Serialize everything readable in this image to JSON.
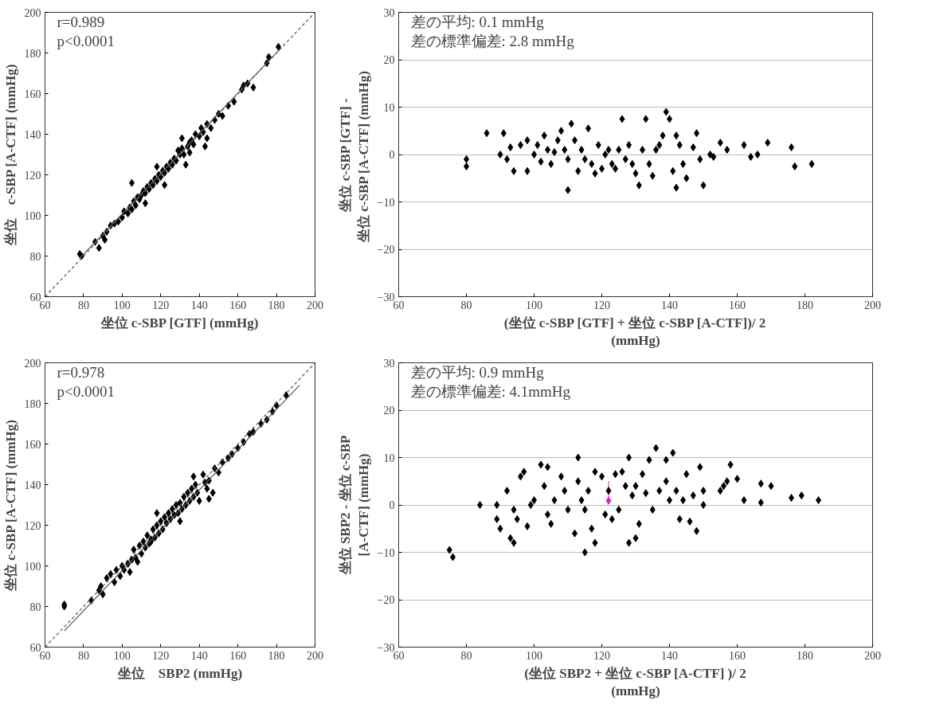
{
  "chart_data": [
    {
      "type": "scatter",
      "xlabel": "坐位 c-SBP [GTF] (mmHg)",
      "ylabel": "坐位　c-SBP [A-CTF] (mmHg)",
      "annotations": [
        "r=0.989",
        "p<0.0001"
      ],
      "xlim": [
        60,
        200
      ],
      "ylim": [
        60,
        200
      ],
      "xticks": [
        60,
        80,
        100,
        120,
        140,
        160,
        180,
        200
      ],
      "yticks": [
        60,
        80,
        100,
        120,
        140,
        160,
        180,
        200
      ],
      "grid": false,
      "marker": "diamond",
      "series": [
        {
          "color": "#000000",
          "x": [
            78,
            79,
            88,
            86,
            90,
            92,
            91,
            94,
            96,
            98,
            100,
            101,
            103,
            104,
            105,
            106,
            107,
            108,
            109,
            110,
            111,
            112,
            113,
            114,
            115,
            116,
            117,
            118,
            119,
            120,
            121,
            122,
            123,
            124,
            125,
            126,
            127,
            128,
            130,
            129,
            131,
            132,
            134,
            135,
            136,
            138,
            137,
            140,
            141,
            142,
            144,
            144,
            146,
            148,
            150,
            152,
            155,
            158,
            162,
            163,
            165,
            168,
            175,
            176,
            181,
            105,
            122,
            133,
            143,
            112,
            118,
            131,
            135
          ],
          "values": [
            81,
            80,
            84,
            87,
            90,
            92,
            88,
            95,
            96,
            97,
            99,
            102,
            101,
            104,
            103,
            107,
            105,
            109,
            108,
            110,
            112,
            111,
            114,
            113,
            116,
            115,
            118,
            117,
            120,
            119,
            122,
            121,
            124,
            123,
            126,
            125,
            128,
            127,
            130,
            132,
            133,
            130,
            134,
            136,
            137,
            140,
            135,
            139,
            143,
            141,
            138,
            145,
            143,
            147,
            150,
            149,
            154,
            156,
            162,
            164,
            165,
            163,
            175,
            178,
            183,
            116,
            115,
            125,
            134,
            106,
            124,
            138,
            131
          ]
        },
        {
          "type": "line",
          "marker": "none",
          "line_style": "dashed",
          "color": "#555555",
          "x": [
            60,
            200
          ],
          "values": [
            60,
            200
          ]
        },
        {
          "type": "line",
          "marker": "none",
          "line_style": "solid",
          "color": "#555555",
          "x": [
            78,
            182
          ],
          "values": [
            79,
            182
          ]
        }
      ]
    },
    {
      "type": "scatter",
      "xlabel": "(坐位 c-SBP [GTF] + 坐位 c-SBP [A-CTF])/ 2\n(mmHg)",
      "ylabel": "坐位 c-SBP [GTF] -\n坐位 c-SBP [A-CTF]  (mmHg)",
      "annotations": [
        "差の平均:  0.1 mmHg",
        "差の標準偏差:  2.8 mmHg"
      ],
      "xlim": [
        60,
        200
      ],
      "ylim": [
        -30,
        30
      ],
      "xticks": [
        60,
        80,
        100,
        120,
        140,
        160,
        180,
        200
      ],
      "yticks": [
        -30,
        -20,
        -10,
        0,
        10,
        20,
        30
      ],
      "grid": "y",
      "marker": "diamond",
      "series": [
        {
          "color": "#000000",
          "x": [
            80,
            80,
            86,
            91,
            90,
            92,
            93,
            94,
            96,
            98,
            98,
            100,
            101,
            102,
            103,
            104,
            105,
            106,
            107,
            108,
            109,
            110,
            110,
            111,
            112,
            113,
            114,
            115,
            116,
            117,
            118,
            119,
            120,
            121,
            122,
            123,
            124,
            125,
            126,
            127,
            128,
            129,
            130,
            131,
            132,
            133,
            134,
            135,
            136,
            137,
            138,
            139,
            140,
            141,
            142,
            142,
            143,
            144,
            145,
            147,
            148,
            149,
            150,
            152,
            153,
            155,
            157,
            162,
            164,
            166,
            169,
            176,
            177,
            182
          ],
          "values": [
            -1,
            -2.5,
            4.5,
            4.5,
            0,
            -1,
            1.5,
            -3.5,
            2,
            -3.5,
            3,
            0,
            2,
            -1.5,
            4,
            1,
            -2,
            0.5,
            3,
            5,
            1,
            -1,
            -7.5,
            6.5,
            3,
            -3.5,
            1,
            -1,
            5.5,
            -2,
            -4,
            2,
            -3,
            0,
            1,
            -2,
            -3,
            1,
            7.5,
            -1,
            2,
            -2,
            -4,
            -6.5,
            1,
            7.5,
            -2,
            -4.5,
            1,
            2,
            4,
            9,
            7.5,
            -3.5,
            4,
            -7,
            2,
            -2,
            -5,
            1.5,
            4.5,
            -1,
            -6.5,
            0,
            -0.5,
            2.5,
            1,
            2,
            -0.5,
            0,
            2.5,
            1.5,
            -2.5,
            -2
          ]
        }
      ]
    },
    {
      "type": "scatter",
      "xlabel": "坐位　SBP2 (mmHg)",
      "ylabel": "坐位 c-SBP [A-CTF] (mmHg)",
      "annotations": [
        "r=0.978",
        "p<0.0001"
      ],
      "xlim": [
        60,
        200
      ],
      "ylim": [
        60,
        200
      ],
      "xticks": [
        60,
        80,
        100,
        120,
        140,
        160,
        180,
        200
      ],
      "yticks": [
        60,
        80,
        100,
        120,
        140,
        160,
        180,
        200
      ],
      "grid": false,
      "marker": "diamond",
      "series": [
        {
          "color": "#000000",
          "x": [
            70,
            70,
            84,
            88,
            89,
            90,
            92,
            94,
            96,
            97,
            99,
            100,
            101,
            103,
            104,
            105,
            106,
            107,
            108,
            109,
            110,
            111,
            112,
            113,
            114,
            115,
            116,
            117,
            118,
            119,
            120,
            121,
            122,
            123,
            124,
            125,
            126,
            127,
            128,
            129,
            130,
            131,
            132,
            133,
            134,
            135,
            136,
            137,
            138,
            139,
            140,
            142,
            143,
            144,
            145,
            147,
            148,
            150,
            152,
            155,
            157,
            160,
            163,
            166,
            168,
            172,
            175,
            178,
            180,
            185,
            115,
            118,
            137,
            130,
            145
          ],
          "values": [
            80,
            81,
            83,
            88,
            90,
            86,
            94,
            96,
            92,
            98,
            95,
            100,
            98,
            101,
            97,
            103,
            108,
            104,
            102,
            110,
            106,
            112,
            109,
            115,
            111,
            113,
            118,
            114,
            120,
            116,
            122,
            118,
            124,
            121,
            126,
            123,
            128,
            125,
            130,
            126,
            131,
            128,
            134,
            130,
            136,
            132,
            138,
            134,
            140,
            136,
            132,
            145,
            141,
            138,
            142,
            136,
            148,
            146,
            151,
            153,
            155,
            158,
            161,
            165,
            166,
            170,
            172,
            176,
            179,
            184,
            112,
            126,
            144,
            122,
            133
          ]
        },
        {
          "type": "line",
          "marker": "none",
          "line_style": "dashed",
          "color": "#555555",
          "x": [
            60,
            200
          ],
          "values": [
            60,
            200
          ]
        },
        {
          "type": "line",
          "marker": "none",
          "line_style": "solid",
          "color": "#555555",
          "x": [
            70,
            192
          ],
          "values": [
            68,
            189
          ]
        }
      ]
    },
    {
      "type": "scatter",
      "xlabel": "(坐位 SBP2 + 坐位 c-SBP [A-CTF] )/ 2\n(mmHg)",
      "ylabel": "坐位 SBP2 - 坐位 c-SBP\n[A-CTF] (mmHg)",
      "annotations": [
        "差の平均:  0.9 mmHg",
        "差の標準偏差:  4.1mmHg"
      ],
      "xlim": [
        60,
        200
      ],
      "ylim": [
        -30,
        30
      ],
      "xticks": [
        60,
        80,
        100,
        120,
        140,
        160,
        180,
        200
      ],
      "yticks": [
        -30,
        -20,
        -10,
        0,
        10,
        20,
        30
      ],
      "grid": "y",
      "marker": "diamond",
      "series": [
        {
          "color": "#000000",
          "x": [
            75,
            76,
            84,
            89,
            89,
            90,
            92,
            93,
            94,
            94,
            95,
            96,
            97,
            98,
            99,
            100,
            102,
            103,
            104,
            104,
            105,
            106,
            108,
            109,
            110,
            112,
            113,
            113,
            114,
            115,
            115,
            116,
            117,
            118,
            118,
            120,
            121,
            122,
            123,
            124,
            125,
            126,
            127,
            128,
            128,
            129,
            130,
            130,
            131,
            132,
            133,
            134,
            135,
            136,
            137,
            139,
            139,
            140,
            141,
            142,
            143,
            144,
            145,
            146,
            147,
            148,
            149,
            150,
            150,
            155,
            156,
            157,
            158,
            160,
            162,
            167,
            167,
            170,
            176,
            179,
            184
          ],
          "values": [
            -9.5,
            -11,
            0,
            0,
            -3,
            -5,
            3,
            -7,
            -8,
            -1,
            -3,
            6,
            7,
            -4.5,
            0,
            1,
            8.5,
            4,
            -2,
            8,
            -4,
            1,
            6,
            3,
            -1,
            -6,
            10,
            5,
            1,
            -1,
            -10,
            3,
            -5,
            -8,
            7,
            6,
            -2,
            3,
            -3,
            6.5,
            -1,
            7,
            4,
            10,
            -8,
            2,
            4,
            -7,
            -4,
            6.5,
            2.5,
            9.5,
            -1,
            12,
            3,
            9.5,
            5,
            1,
            11,
            3,
            -3,
            1,
            6.5,
            -3.5,
            2,
            -5.5,
            8,
            3,
            0,
            3,
            4,
            5,
            8.5,
            5.5,
            1,
            4.5,
            0.5,
            4,
            1.5,
            2,
            1
          ]
        },
        {
          "type": "scatter",
          "color": "#e020e0",
          "x": [
            122
          ],
          "values": [
            0.9
          ],
          "errors": [
            [
              0.9,
              5
            ]
          ]
        }
      ]
    }
  ]
}
